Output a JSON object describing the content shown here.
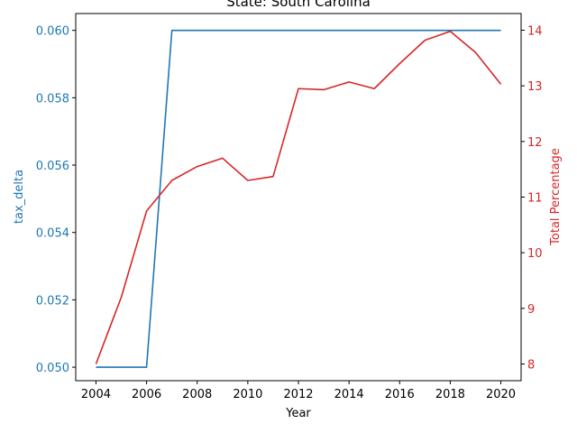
{
  "chart_data": {
    "type": "line",
    "title": "State: South Carolina",
    "xlabel": "Year",
    "ylabel_left": "tax_delta",
    "ylabel_right": "Total Percentage",
    "x": [
      2004,
      2005,
      2006,
      2007,
      2008,
      2009,
      2010,
      2011,
      2012,
      2013,
      2014,
      2015,
      2016,
      2017,
      2018,
      2019,
      2020
    ],
    "xlim": [
      2003.2,
      2020.8
    ],
    "x_ticks": [
      2004,
      2006,
      2008,
      2010,
      2012,
      2014,
      2016,
      2018,
      2020
    ],
    "ylim_left": [
      0.0496,
      0.0605
    ],
    "y_ticks_left": [
      "0.050",
      "0.052",
      "0.054",
      "0.056",
      "0.058",
      "0.060"
    ],
    "ylim_right": [
      7.7,
      14.3
    ],
    "y_ticks_right": [
      "8",
      "9",
      "10",
      "11",
      "12",
      "13",
      "14"
    ],
    "grid": false,
    "series": [
      {
        "axis": "left",
        "color": "#1f77b4",
        "values": [
          0.05,
          0.05,
          0.05,
          0.06,
          0.06,
          0.06,
          0.06,
          0.06,
          0.06,
          0.06,
          0.06,
          0.06,
          0.06,
          0.06,
          0.06,
          0.06,
          0.06
        ]
      },
      {
        "axis": "right",
        "color": "#d62728",
        "values": [
          8.0,
          9.2,
          10.75,
          11.3,
          11.55,
          11.7,
          11.3,
          11.37,
          12.95,
          12.93,
          13.07,
          12.95,
          13.4,
          13.82,
          13.98,
          13.6,
          13.03
        ]
      }
    ]
  }
}
